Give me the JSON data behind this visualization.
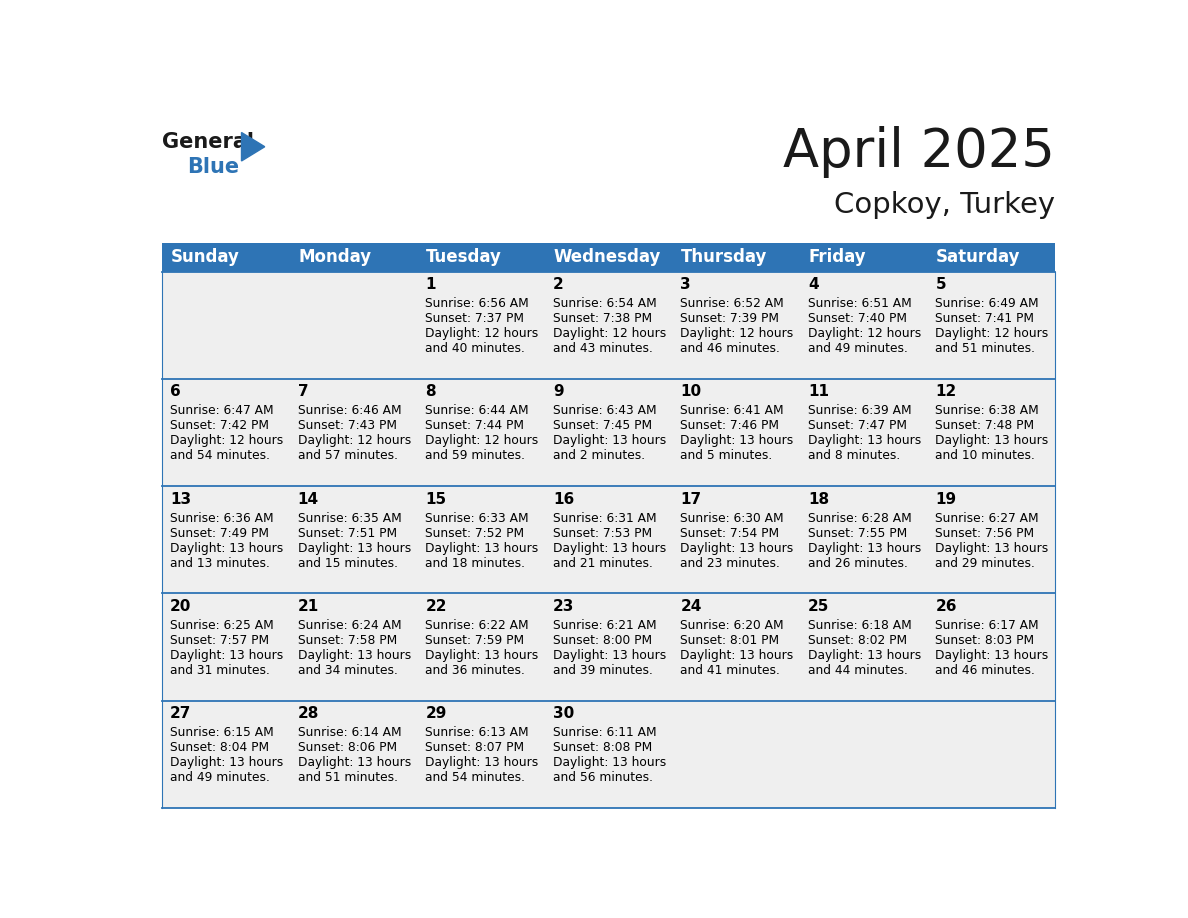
{
  "title": "April 2025",
  "subtitle": "Copkoy, Turkey",
  "days_of_week": [
    "Sunday",
    "Monday",
    "Tuesday",
    "Wednesday",
    "Thursday",
    "Friday",
    "Saturday"
  ],
  "header_bg": "#2E74B5",
  "header_text": "#FFFFFF",
  "row_bg": "#EFEFEF",
  "cell_text_color": "#000000",
  "day_num_color": "#000000",
  "border_color": "#2E74B5",
  "calendar_data": [
    [
      {
        "day": null,
        "sunrise": null,
        "sunset": null,
        "daylight_line1": null,
        "daylight_line2": null
      },
      {
        "day": null,
        "sunrise": null,
        "sunset": null,
        "daylight_line1": null,
        "daylight_line2": null
      },
      {
        "day": 1,
        "sunrise": "6:56 AM",
        "sunset": "7:37 PM",
        "daylight_line1": "Daylight: 12 hours",
        "daylight_line2": "and 40 minutes."
      },
      {
        "day": 2,
        "sunrise": "6:54 AM",
        "sunset": "7:38 PM",
        "daylight_line1": "Daylight: 12 hours",
        "daylight_line2": "and 43 minutes."
      },
      {
        "day": 3,
        "sunrise": "6:52 AM",
        "sunset": "7:39 PM",
        "daylight_line1": "Daylight: 12 hours",
        "daylight_line2": "and 46 minutes."
      },
      {
        "day": 4,
        "sunrise": "6:51 AM",
        "sunset": "7:40 PM",
        "daylight_line1": "Daylight: 12 hours",
        "daylight_line2": "and 49 minutes."
      },
      {
        "day": 5,
        "sunrise": "6:49 AM",
        "sunset": "7:41 PM",
        "daylight_line1": "Daylight: 12 hours",
        "daylight_line2": "and 51 minutes."
      }
    ],
    [
      {
        "day": 6,
        "sunrise": "6:47 AM",
        "sunset": "7:42 PM",
        "daylight_line1": "Daylight: 12 hours",
        "daylight_line2": "and 54 minutes."
      },
      {
        "day": 7,
        "sunrise": "6:46 AM",
        "sunset": "7:43 PM",
        "daylight_line1": "Daylight: 12 hours",
        "daylight_line2": "and 57 minutes."
      },
      {
        "day": 8,
        "sunrise": "6:44 AM",
        "sunset": "7:44 PM",
        "daylight_line1": "Daylight: 12 hours",
        "daylight_line2": "and 59 minutes."
      },
      {
        "day": 9,
        "sunrise": "6:43 AM",
        "sunset": "7:45 PM",
        "daylight_line1": "Daylight: 13 hours",
        "daylight_line2": "and 2 minutes."
      },
      {
        "day": 10,
        "sunrise": "6:41 AM",
        "sunset": "7:46 PM",
        "daylight_line1": "Daylight: 13 hours",
        "daylight_line2": "and 5 minutes."
      },
      {
        "day": 11,
        "sunrise": "6:39 AM",
        "sunset": "7:47 PM",
        "daylight_line1": "Daylight: 13 hours",
        "daylight_line2": "and 8 minutes."
      },
      {
        "day": 12,
        "sunrise": "6:38 AM",
        "sunset": "7:48 PM",
        "daylight_line1": "Daylight: 13 hours",
        "daylight_line2": "and 10 minutes."
      }
    ],
    [
      {
        "day": 13,
        "sunrise": "6:36 AM",
        "sunset": "7:49 PM",
        "daylight_line1": "Daylight: 13 hours",
        "daylight_line2": "and 13 minutes."
      },
      {
        "day": 14,
        "sunrise": "6:35 AM",
        "sunset": "7:51 PM",
        "daylight_line1": "Daylight: 13 hours",
        "daylight_line2": "and 15 minutes."
      },
      {
        "day": 15,
        "sunrise": "6:33 AM",
        "sunset": "7:52 PM",
        "daylight_line1": "Daylight: 13 hours",
        "daylight_line2": "and 18 minutes."
      },
      {
        "day": 16,
        "sunrise": "6:31 AM",
        "sunset": "7:53 PM",
        "daylight_line1": "Daylight: 13 hours",
        "daylight_line2": "and 21 minutes."
      },
      {
        "day": 17,
        "sunrise": "6:30 AM",
        "sunset": "7:54 PM",
        "daylight_line1": "Daylight: 13 hours",
        "daylight_line2": "and 23 minutes."
      },
      {
        "day": 18,
        "sunrise": "6:28 AM",
        "sunset": "7:55 PM",
        "daylight_line1": "Daylight: 13 hours",
        "daylight_line2": "and 26 minutes."
      },
      {
        "day": 19,
        "sunrise": "6:27 AM",
        "sunset": "7:56 PM",
        "daylight_line1": "Daylight: 13 hours",
        "daylight_line2": "and 29 minutes."
      }
    ],
    [
      {
        "day": 20,
        "sunrise": "6:25 AM",
        "sunset": "7:57 PM",
        "daylight_line1": "Daylight: 13 hours",
        "daylight_line2": "and 31 minutes."
      },
      {
        "day": 21,
        "sunrise": "6:24 AM",
        "sunset": "7:58 PM",
        "daylight_line1": "Daylight: 13 hours",
        "daylight_line2": "and 34 minutes."
      },
      {
        "day": 22,
        "sunrise": "6:22 AM",
        "sunset": "7:59 PM",
        "daylight_line1": "Daylight: 13 hours",
        "daylight_line2": "and 36 minutes."
      },
      {
        "day": 23,
        "sunrise": "6:21 AM",
        "sunset": "8:00 PM",
        "daylight_line1": "Daylight: 13 hours",
        "daylight_line2": "and 39 minutes."
      },
      {
        "day": 24,
        "sunrise": "6:20 AM",
        "sunset": "8:01 PM",
        "daylight_line1": "Daylight: 13 hours",
        "daylight_line2": "and 41 minutes."
      },
      {
        "day": 25,
        "sunrise": "6:18 AM",
        "sunset": "8:02 PM",
        "daylight_line1": "Daylight: 13 hours",
        "daylight_line2": "and 44 minutes."
      },
      {
        "day": 26,
        "sunrise": "6:17 AM",
        "sunset": "8:03 PM",
        "daylight_line1": "Daylight: 13 hours",
        "daylight_line2": "and 46 minutes."
      }
    ],
    [
      {
        "day": 27,
        "sunrise": "6:15 AM",
        "sunset": "8:04 PM",
        "daylight_line1": "Daylight: 13 hours",
        "daylight_line2": "and 49 minutes."
      },
      {
        "day": 28,
        "sunrise": "6:14 AM",
        "sunset": "8:06 PM",
        "daylight_line1": "Daylight: 13 hours",
        "daylight_line2": "and 51 minutes."
      },
      {
        "day": 29,
        "sunrise": "6:13 AM",
        "sunset": "8:07 PM",
        "daylight_line1": "Daylight: 13 hours",
        "daylight_line2": "and 54 minutes."
      },
      {
        "day": 30,
        "sunrise": "6:11 AM",
        "sunset": "8:08 PM",
        "daylight_line1": "Daylight: 13 hours",
        "daylight_line2": "and 56 minutes."
      },
      {
        "day": null,
        "sunrise": null,
        "sunset": null,
        "daylight_line1": null,
        "daylight_line2": null
      },
      {
        "day": null,
        "sunrise": null,
        "sunset": null,
        "daylight_line1": null,
        "daylight_line2": null
      },
      {
        "day": null,
        "sunrise": null,
        "sunset": null,
        "daylight_line1": null,
        "daylight_line2": null
      }
    ]
  ],
  "logo_general_color": "#1a1a1a",
  "logo_blue_color": "#2E74B5",
  "title_fontsize": 38,
  "subtitle_fontsize": 21,
  "header_fontsize": 12,
  "cell_day_fontsize": 11,
  "cell_text_fontsize": 8.8
}
